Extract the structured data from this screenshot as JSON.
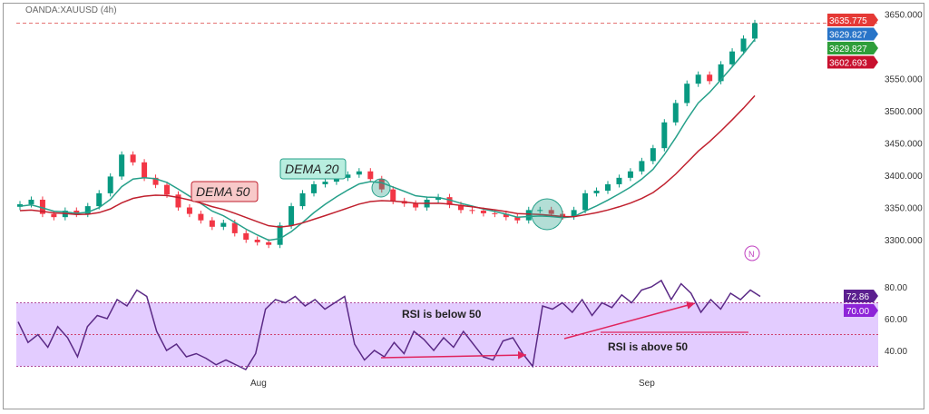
{
  "symbol_title": "OANDA:XAUUSD (4h)",
  "colors": {
    "up": "#089981",
    "down": "#f23645",
    "dema20": "#26a08a",
    "dema50": "#c0202e",
    "rsi": "#5b2a86",
    "rsi_band": "#e3ccff",
    "annotation": "#e0245e"
  },
  "price_axis": {
    "ticks": [
      "3650.000",
      "3550.000",
      "3500.000",
      "3450.000",
      "3400.000",
      "3350.000",
      "3300.000"
    ]
  },
  "price_labels": [
    {
      "text": "3635.775",
      "color": "#e53935"
    },
    {
      "text": "3629.827",
      "color": "#2874c8"
    },
    {
      "text": "3629.827",
      "color": "#2e9e3a"
    },
    {
      "text": "3602.693",
      "color": "#c8102e"
    }
  ],
  "rsi_axis": {
    "ticks": [
      "80.00",
      "60.00",
      "40.00"
    ]
  },
  "rsi_labels": [
    {
      "text": "72.86",
      "color": "#5b1f8f"
    },
    {
      "text": "70.00",
      "color": "#8e24d8"
    }
  ],
  "time_axis": {
    "ticks": [
      "Aug",
      "Sep"
    ]
  },
  "annotations": {
    "dema50": "DEMA 50",
    "dema20": "DEMA 20",
    "rsi_below": "RSI is below 50",
    "rsi_above": "RSI is above 50",
    "indicator_badge": "N"
  },
  "chart_data": [
    {
      "type": "candlestick",
      "series_name": "XAUUSD",
      "ylim": [
        3270,
        3660
      ],
      "close": [
        3355,
        3362,
        3340,
        3335,
        3345,
        3340,
        3352,
        3372,
        3398,
        3432,
        3420,
        3396,
        3385,
        3370,
        3350,
        3340,
        3330,
        3320,
        3326,
        3310,
        3300,
        3296,
        3292,
        3322,
        3352,
        3372,
        3386,
        3390,
        3396,
        3401,
        3406,
        3394,
        3378,
        3360,
        3356,
        3350,
        3362,
        3366,
        3354,
        3346,
        3345,
        3341,
        3340,
        3335,
        3330,
        3346,
        3346,
        3340,
        3336,
        3346,
        3372,
        3376,
        3386,
        3396,
        3406,
        3422,
        3442,
        3482,
        3512,
        3542,
        3556,
        3546,
        3572,
        3592,
        3612,
        3636
      ],
      "indicators": [
        "DEMA 20",
        "DEMA 50"
      ]
    },
    {
      "type": "line",
      "series_name": "RSI",
      "ylim": [
        28,
        88
      ],
      "band": [
        30,
        70
      ],
      "midline": 50,
      "values": [
        58,
        45,
        50,
        42,
        55,
        48,
        36,
        55,
        62,
        60,
        72,
        68,
        78,
        74,
        52,
        40,
        44,
        36,
        38,
        35,
        31,
        34,
        31,
        28,
        38,
        66,
        72,
        70,
        74,
        68,
        72,
        66,
        70,
        74,
        44,
        34,
        40,
        36,
        45,
        38,
        52,
        47,
        40,
        48,
        42,
        52,
        44,
        36,
        34,
        46,
        48,
        38,
        30,
        68,
        66,
        70,
        64,
        72,
        62,
        70,
        67,
        75,
        70,
        78,
        80,
        84,
        72,
        82,
        76,
        64,
        72,
        66,
        76,
        72,
        78,
        74
      ]
    }
  ]
}
